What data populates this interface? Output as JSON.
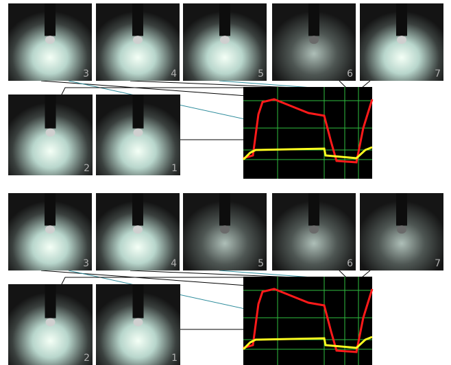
{
  "groups": [
    {
      "frames": [
        "3",
        "4",
        "5",
        "6",
        "7",
        "2",
        "1"
      ]
    },
    {
      "frames": [
        "3",
        "4",
        "5",
        "6",
        "7",
        "2",
        "1"
      ]
    }
  ]
}
